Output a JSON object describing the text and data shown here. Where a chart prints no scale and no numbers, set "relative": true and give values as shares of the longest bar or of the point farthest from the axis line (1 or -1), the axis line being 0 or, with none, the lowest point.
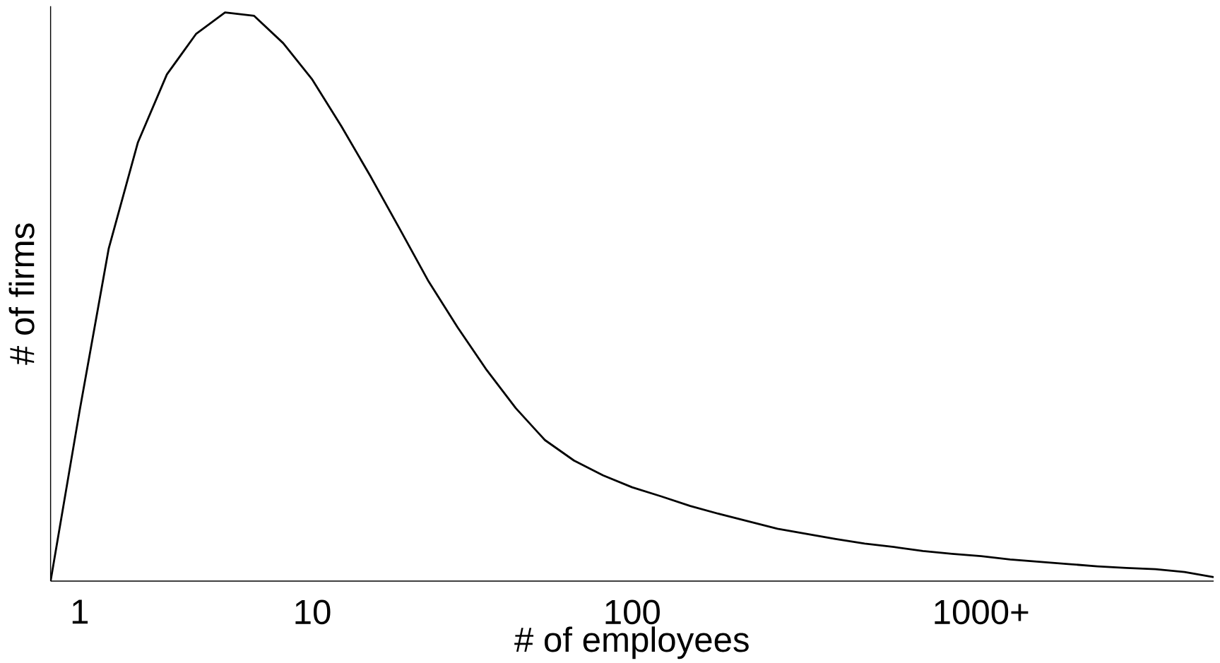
{
  "chart_data": {
    "type": "line",
    "relative": true,
    "xlabel": "# of employees",
    "ylabel": "# of firms",
    "categories": [
      null,
      "1",
      null,
      null,
      null,
      null,
      null,
      null,
      null,
      "10",
      null,
      null,
      null,
      null,
      null,
      null,
      null,
      null,
      null,
      null,
      "100",
      null,
      null,
      null,
      null,
      null,
      null,
      null,
      null,
      null,
      null,
      null,
      "1000+",
      null,
      null,
      null,
      null,
      null,
      null,
      null,
      null
    ],
    "series": [
      {
        "color": "#000000",
        "values": [
          0,
          0.3,
          0.585,
          0.771,
          0.891,
          0.962,
          1,
          0.994,
          0.946,
          0.882,
          0.8,
          0.712,
          0.62,
          0.527,
          0.446,
          0.371,
          0.304,
          0.248,
          0.212,
          0.186,
          0.165,
          0.149,
          0.132,
          0.118,
          0.105,
          0.092,
          0.083,
          0.074,
          0.066,
          0.06,
          0.053,
          0.048,
          0.044,
          0.038,
          0.034,
          0.03,
          0.026,
          0.023,
          0.021,
          0.016,
          0.007
        ]
      }
    ]
  }
}
